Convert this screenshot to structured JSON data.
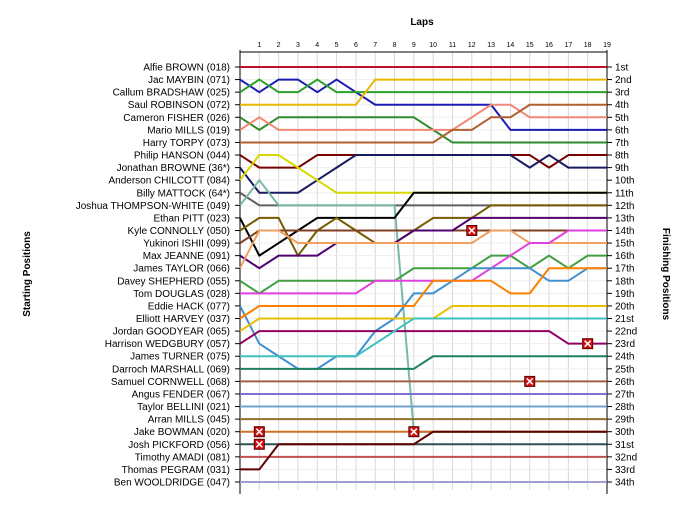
{
  "chart_data": {
    "type": "line",
    "title": "Laps",
    "ylabel_left": "Starting Positions",
    "ylabel_right": "Finishing Positions",
    "laps": [
      1,
      2,
      3,
      4,
      5,
      6,
      7,
      8,
      9,
      10,
      11,
      12,
      13,
      14,
      15,
      16,
      17,
      18,
      19
    ],
    "finishing_labels": [
      "1st",
      "2nd",
      "3rd",
      "4th",
      "5th",
      "6th",
      "7th",
      "8th",
      "9th",
      "10th",
      "11th",
      "12th",
      "13th",
      "14th",
      "15th",
      "16th",
      "17th",
      "18th",
      "19th",
      "20th",
      "21st",
      "22nd",
      "23rd",
      "24th",
      "25th",
      "26th",
      "27th",
      "28th",
      "29th",
      "30th",
      "31st",
      "32nd",
      "33rd",
      "34th"
    ],
    "grid": true,
    "series": [
      {
        "name": "Alfie BROWN (018)",
        "color": "#c0102a",
        "positions": [
          1,
          1,
          1,
          1,
          1,
          1,
          1,
          1,
          1,
          1,
          1,
          1,
          1,
          1,
          1,
          1,
          1,
          1,
          1,
          1
        ]
      },
      {
        "name": "Jac MAYBIN (071)",
        "color": "#1c1cb4",
        "positions": [
          2,
          3,
          2,
          2,
          3,
          2,
          3,
          4,
          4,
          4,
          4,
          4,
          4,
          4,
          6,
          6,
          6,
          6,
          6,
          6
        ]
      },
      {
        "name": "Callum BRADSHAW (025)",
        "color": "#2aa02a",
        "positions": [
          3,
          2,
          3,
          3,
          2,
          3,
          3,
          3,
          3,
          3,
          3,
          3,
          3,
          3,
          3,
          3,
          3,
          3,
          3,
          3
        ]
      },
      {
        "name": "Saul ROBINSON (072)",
        "color": "#e8b800",
        "positions": [
          4,
          4,
          4,
          4,
          4,
          4,
          4,
          2,
          2,
          2,
          2,
          2,
          2,
          2,
          2,
          2,
          2,
          2,
          2,
          2
        ]
      },
      {
        "name": "Cameron FISHER (026)",
        "color": "#2e8b2e",
        "positions": [
          5,
          6,
          5,
          5,
          5,
          5,
          5,
          5,
          5,
          5,
          6,
          7,
          7,
          7,
          7,
          7,
          7,
          7,
          7,
          7
        ]
      },
      {
        "name": "Mario MILLS (019)",
        "color": "#f08878",
        "positions": [
          6,
          5,
          6,
          6,
          6,
          6,
          6,
          6,
          6,
          6,
          6,
          6,
          5,
          4,
          4,
          5,
          5,
          5,
          5,
          5
        ]
      },
      {
        "name": "Harry TORPY (073)",
        "color": "#b06030",
        "positions": [
          7,
          7,
          7,
          7,
          7,
          7,
          7,
          7,
          7,
          7,
          7,
          6,
          6,
          5,
          5,
          4,
          4,
          4,
          4,
          4
        ]
      },
      {
        "name": "Philip HANSON (044)",
        "color": "#780000",
        "positions": [
          8,
          9,
          9,
          9,
          8,
          8,
          8,
          8,
          8,
          8,
          8,
          8,
          8,
          8,
          8,
          8,
          9,
          8,
          8,
          8
        ]
      },
      {
        "name": "Jonathan BROWNE (36*)",
        "color": "#1a1a60",
        "positions": [
          9,
          11,
          11,
          11,
          10,
          9,
          8,
          8,
          8,
          8,
          8,
          8,
          8,
          8,
          8,
          9,
          8,
          9,
          9,
          9
        ]
      },
      {
        "name": "Anderson CHILCOTT (084)",
        "color": "#d8d800",
        "positions": [
          10,
          8,
          8,
          9,
          10,
          11,
          11,
          11,
          11,
          11,
          11,
          11,
          11,
          11,
          11,
          11,
          11,
          11,
          11,
          11
        ]
      },
      {
        "name": "Billy MATTOCK (64*)",
        "color": "#606060",
        "positions": [
          11,
          12,
          12,
          12,
          12,
          12,
          12,
          12,
          12,
          12,
          12,
          12,
          12,
          12,
          12,
          12,
          12,
          12,
          12,
          12
        ]
      },
      {
        "name": "Joshua THOMPSON-WHITE (049)",
        "color": "#7ab8a8",
        "positions": [
          12,
          10,
          12,
          12,
          12,
          12,
          12,
          12,
          12,
          30,
          30,
          30,
          30,
          30,
          30,
          30,
          30,
          30,
          30,
          30
        ]
      },
      {
        "name": "Ethan PITT (023)",
        "color": "#000000",
        "positions": [
          13,
          16,
          15,
          14,
          13,
          13,
          13,
          13,
          13,
          11,
          11,
          11,
          11,
          11,
          11,
          11,
          11,
          11,
          11,
          11
        ]
      },
      {
        "name": "Kyle CONNOLLY (050)",
        "color": "#7a5a00",
        "positions": [
          14,
          13,
          13,
          16,
          14,
          13,
          14,
          15,
          15,
          14,
          13,
          13,
          13,
          12,
          12,
          12,
          12,
          12,
          12,
          12
        ]
      },
      {
        "name": "Yukinori ISHII (099)",
        "color": "#804020",
        "positions": [
          15,
          14,
          14,
          14,
          14,
          14,
          14,
          14,
          14,
          14,
          14,
          14,
          14,
          14,
          14,
          14,
          14,
          14,
          14,
          14
        ]
      },
      {
        "name": "Max JEANNE (091)",
        "color": "#500070",
        "positions": [
          16,
          17,
          16,
          16,
          16,
          15,
          15,
          15,
          15,
          14,
          14,
          14,
          13,
          13,
          13,
          13,
          13,
          13,
          13,
          13
        ]
      },
      {
        "name": "James TAYLOR (066)",
        "color": "#f0a060",
        "positions": [
          17,
          14,
          14,
          15,
          15,
          15,
          15,
          15,
          15,
          15,
          15,
          15,
          15,
          14,
          14,
          15,
          15,
          15,
          15,
          15
        ]
      },
      {
        "name": "Davey SHEPHERD (055)",
        "color": "#40a040",
        "positions": [
          18,
          19,
          18,
          18,
          18,
          18,
          18,
          18,
          18,
          17,
          17,
          17,
          17,
          16,
          16,
          17,
          16,
          17,
          16,
          16
        ]
      },
      {
        "name": "Tom DOUGLAS (028)",
        "color": "#e040e0",
        "positions": [
          19,
          19,
          19,
          19,
          19,
          19,
          19,
          18,
          18,
          18,
          18,
          18,
          18,
          17,
          16,
          15,
          15,
          14,
          14,
          14
        ]
      },
      {
        "name": "Eddie HACK (077)",
        "color": "#4090d0",
        "positions": [
          20,
          23,
          24,
          25,
          25,
          24,
          24,
          22,
          21,
          19,
          19,
          18,
          17,
          17,
          17,
          17,
          18,
          18,
          17,
          17
        ]
      },
      {
        "name": "Elliott HARVEY (037)",
        "color": "#ff8000",
        "positions": [
          21,
          20,
          20,
          20,
          20,
          20,
          20,
          20,
          20,
          20,
          18,
          18,
          18,
          18,
          19,
          19,
          17,
          17,
          17,
          17
        ]
      },
      {
        "name": "Jordan GOODYEAR (065)",
        "color": "#e8c000",
        "positions": [
          22,
          21,
          21,
          21,
          21,
          21,
          21,
          21,
          21,
          21,
          21,
          20,
          20,
          20,
          20,
          20,
          20,
          20,
          20,
          20
        ]
      },
      {
        "name": "Harrison WEDGBURY (057)",
        "color": "#900060",
        "positions": [
          23,
          22,
          22,
          22,
          22,
          22,
          22,
          22,
          22,
          22,
          22,
          22,
          22,
          22,
          22,
          22,
          22,
          23,
          23,
          23
        ]
      },
      {
        "name": "James TURNER (075)",
        "color": "#40c0c0",
        "positions": [
          24,
          24,
          24,
          24,
          24,
          24,
          24,
          23,
          22,
          21,
          21,
          21,
          21,
          21,
          21,
          21,
          21,
          21,
          21,
          21
        ]
      },
      {
        "name": "Darroch MARSHALL (069)",
        "color": "#208060",
        "positions": [
          25,
          25,
          25,
          25,
          25,
          25,
          25,
          25,
          25,
          25,
          24,
          24,
          24,
          24,
          24,
          24,
          24,
          24,
          24,
          24
        ]
      },
      {
        "name": "Samuel CORNWELL (068)",
        "color": "#a06040",
        "positions": [
          26,
          26,
          26,
          26,
          26,
          26,
          26,
          26,
          26,
          26,
          26,
          26,
          26,
          26,
          26,
          26,
          26,
          26,
          26,
          26
        ]
      },
      {
        "name": "Angus FENDER (067)",
        "color": "#8070d0",
        "positions": [
          27,
          27,
          27,
          27,
          27,
          27,
          27,
          27,
          27,
          27,
          27,
          27,
          27,
          27,
          27,
          27,
          27,
          27,
          27,
          27
        ]
      },
      {
        "name": "Taylor BELLINI (021)",
        "color": "#70a0d0",
        "positions": [
          28,
          28,
          28,
          28,
          28,
          28,
          28,
          28,
          28,
          28,
          28,
          28,
          28,
          28,
          28,
          28,
          28,
          28,
          28,
          28
        ]
      },
      {
        "name": "Arran MILLS (045)",
        "color": "#907030",
        "positions": [
          29,
          29,
          29,
          29,
          29,
          29,
          29,
          29,
          29,
          29,
          29,
          29,
          29,
          29,
          29,
          29,
          29,
          29,
          29,
          29
        ]
      },
      {
        "name": "Jake BOWMAN (020)",
        "color": "#d07020",
        "positions": [
          30,
          30,
          30,
          30,
          30,
          30,
          30,
          30,
          30,
          30,
          30,
          30,
          30,
          30,
          30,
          30,
          30,
          30,
          30,
          30
        ]
      },
      {
        "name": "Josh PICKFORD (056)",
        "color": "#305050",
        "positions": [
          31,
          31,
          31,
          31,
          31,
          31,
          31,
          31,
          31,
          31,
          31,
          31,
          31,
          31,
          31,
          31,
          31,
          31,
          31,
          31
        ]
      },
      {
        "name": "Timothy AMADI (081)",
        "color": "#c05050",
        "positions": [
          32,
          32,
          32,
          32,
          32,
          32,
          32,
          32,
          32,
          32,
          32,
          32,
          32,
          32,
          32,
          32,
          32,
          32,
          32,
          32
        ]
      },
      {
        "name": "Thomas PEGRAM (031)",
        "color": "#600000",
        "positions": [
          33,
          33,
          31,
          31,
          31,
          31,
          31,
          31,
          31,
          31,
          30,
          30,
          30,
          30,
          30,
          30,
          30,
          30,
          30,
          30
        ]
      },
      {
        "name": "Ben WOOLDRIDGE (047)",
        "color": "#a0a0d0",
        "positions": [
          34,
          34,
          34,
          34,
          34,
          34,
          34,
          34,
          34,
          34,
          34,
          34,
          34,
          34,
          34,
          34,
          34,
          34,
          34,
          34
        ]
      }
    ],
    "retirements": [
      {
        "lap": 1,
        "position": 30
      },
      {
        "lap": 1,
        "position": 31
      },
      {
        "lap": 9,
        "position": 30
      },
      {
        "lap": 12,
        "position": 14
      },
      {
        "lap": 15,
        "position": 26
      },
      {
        "lap": 18,
        "position": 23
      }
    ]
  }
}
